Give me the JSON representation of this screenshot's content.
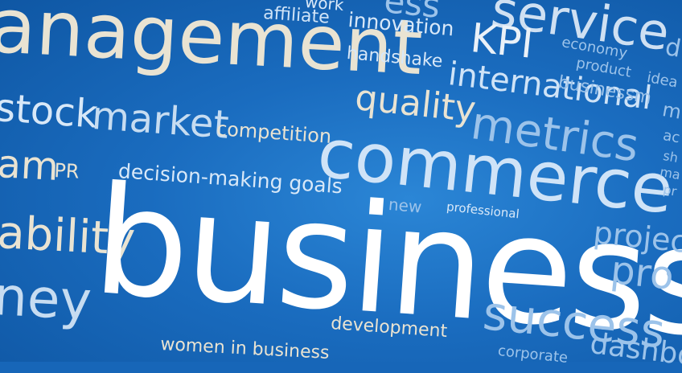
{
  "scene": {
    "background_color": "#1766b8",
    "words": [
      {
        "id": "management",
        "text": "anagement",
        "color": "#e9e3d2"
      },
      {
        "id": "affiliate",
        "text": "affiliate",
        "color": "#cfe3f7"
      },
      {
        "id": "network",
        "text": "work",
        "color": "#d8e8f8"
      },
      {
        "id": "innovation",
        "text": "innovation",
        "color": "#d8e8f8"
      },
      {
        "id": "success-top",
        "text": "ess",
        "color": "#9cc3ea"
      },
      {
        "id": "service",
        "text": "service",
        "color": "#cfe0f2"
      },
      {
        "id": "kpi",
        "text": "KPI",
        "color": "#eaf1f8"
      },
      {
        "id": "economy",
        "text": "economy",
        "color": "#9cc3ea"
      },
      {
        "id": "product",
        "text": "product",
        "color": "#9cc3ea"
      },
      {
        "id": "ideas",
        "text": "idea",
        "color": "#9cc3ea"
      },
      {
        "id": "handshake",
        "text": "handshake",
        "color": "#d8e8f8"
      },
      {
        "id": "international",
        "text": "international",
        "color": "#cfe3f7"
      },
      {
        "id": "businessman",
        "text": "businessm",
        "color": "#9cc3ea"
      },
      {
        "id": "stock",
        "text": "stock",
        "color": "#d8e8f8"
      },
      {
        "id": "market",
        "text": "market",
        "color": "#c6dcf1"
      },
      {
        "id": "competition",
        "text": "competition",
        "color": "#e9e3d2"
      },
      {
        "id": "quality",
        "text": "quality",
        "color": "#e9e3d2"
      },
      {
        "id": "metrics",
        "text": "metrics",
        "color": "#9cc3ea"
      },
      {
        "id": "team",
        "text": "am",
        "color": "#e9e3d2"
      },
      {
        "id": "pr",
        "text": "PR",
        "color": "#e9e3d2"
      },
      {
        "id": "decision-making",
        "text": "decision-making goals",
        "color": "#d8e8f8"
      },
      {
        "id": "commerce",
        "text": "commerce",
        "color": "#cfe3f7"
      },
      {
        "id": "new",
        "text": "new",
        "color": "#9cc3ea"
      },
      {
        "id": "professional",
        "text": "professional",
        "color": "#d8e8f8"
      },
      {
        "id": "profitability",
        "text": "ability",
        "color": "#e9e3d2"
      },
      {
        "id": "business",
        "text": "business",
        "color": "#ffffff"
      },
      {
        "id": "project",
        "text": "projec",
        "color": "#9cc3ea"
      },
      {
        "id": "pro",
        "text": "pro",
        "color": "#9cc3ea"
      },
      {
        "id": "money",
        "text": "ney",
        "color": "#c6dcf1"
      },
      {
        "id": "success",
        "text": "success",
        "color": "#9cc3ea"
      },
      {
        "id": "development",
        "text": "development",
        "color": "#e9e3d2"
      },
      {
        "id": "women-in-business",
        "text": "women in business",
        "color": "#e9e3d2"
      },
      {
        "id": "corporate",
        "text": "corporate",
        "color": "#9cc3ea"
      },
      {
        "id": "dashboard",
        "text": "dashbo",
        "color": "#9cc3ea"
      },
      {
        "id": "side-ac",
        "text": "ac",
        "color": "#9cc3ea"
      },
      {
        "id": "side-sh",
        "text": "sh",
        "color": "#9cc3ea"
      },
      {
        "id": "side-ma",
        "text": "ma",
        "color": "#9cc3ea"
      },
      {
        "id": "side-pr",
        "text": "pr",
        "color": "#9cc3ea"
      },
      {
        "id": "side-d",
        "text": "d",
        "color": "#9cc3ea"
      },
      {
        "id": "side-m",
        "text": "m",
        "color": "#9cc3ea"
      }
    ]
  }
}
